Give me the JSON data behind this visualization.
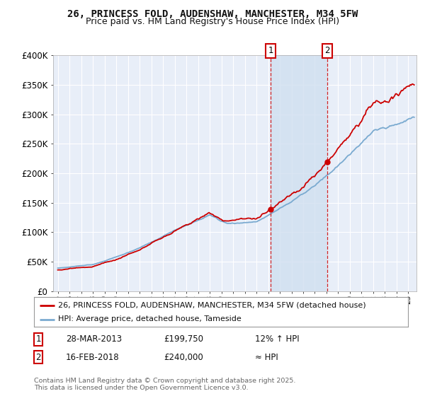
{
  "title": "26, PRINCESS FOLD, AUDENSHAW, MANCHESTER, M34 5FW",
  "subtitle": "Price paid vs. HM Land Registry's House Price Index (HPI)",
  "ylim": [
    0,
    400000
  ],
  "yticks": [
    0,
    50000,
    100000,
    150000,
    200000,
    250000,
    300000,
    350000,
    400000
  ],
  "ytick_labels": [
    "£0",
    "£50K",
    "£100K",
    "£150K",
    "£200K",
    "£250K",
    "£300K",
    "£350K",
    "£400K"
  ],
  "background_color": "#ffffff",
  "plot_bg_color": "#e8eef8",
  "grid_color": "#ffffff",
  "red_line_color": "#cc0000",
  "blue_line_color": "#7aaad0",
  "shade_color": "#d0dff0",
  "legend1": "26, PRINCESS FOLD, AUDENSHAW, MANCHESTER, M34 5FW (detached house)",
  "legend2": "HPI: Average price, detached house, Tameside",
  "note1_num": "1",
  "note1_date": "28-MAR-2013",
  "note1_price": "£199,750",
  "note1_hpi": "12% ↑ HPI",
  "note2_num": "2",
  "note2_date": "16-FEB-2018",
  "note2_price": "£240,000",
  "note2_hpi": "≈ HPI",
  "footer": "Contains HM Land Registry data © Crown copyright and database right 2025.\nThis data is licensed under the Open Government Licence v3.0.",
  "title_fontsize": 10,
  "subtitle_fontsize": 9,
  "year_start": 1995,
  "year_end": 2025,
  "marker1_year": 2013.25,
  "marker2_year": 2018.1
}
